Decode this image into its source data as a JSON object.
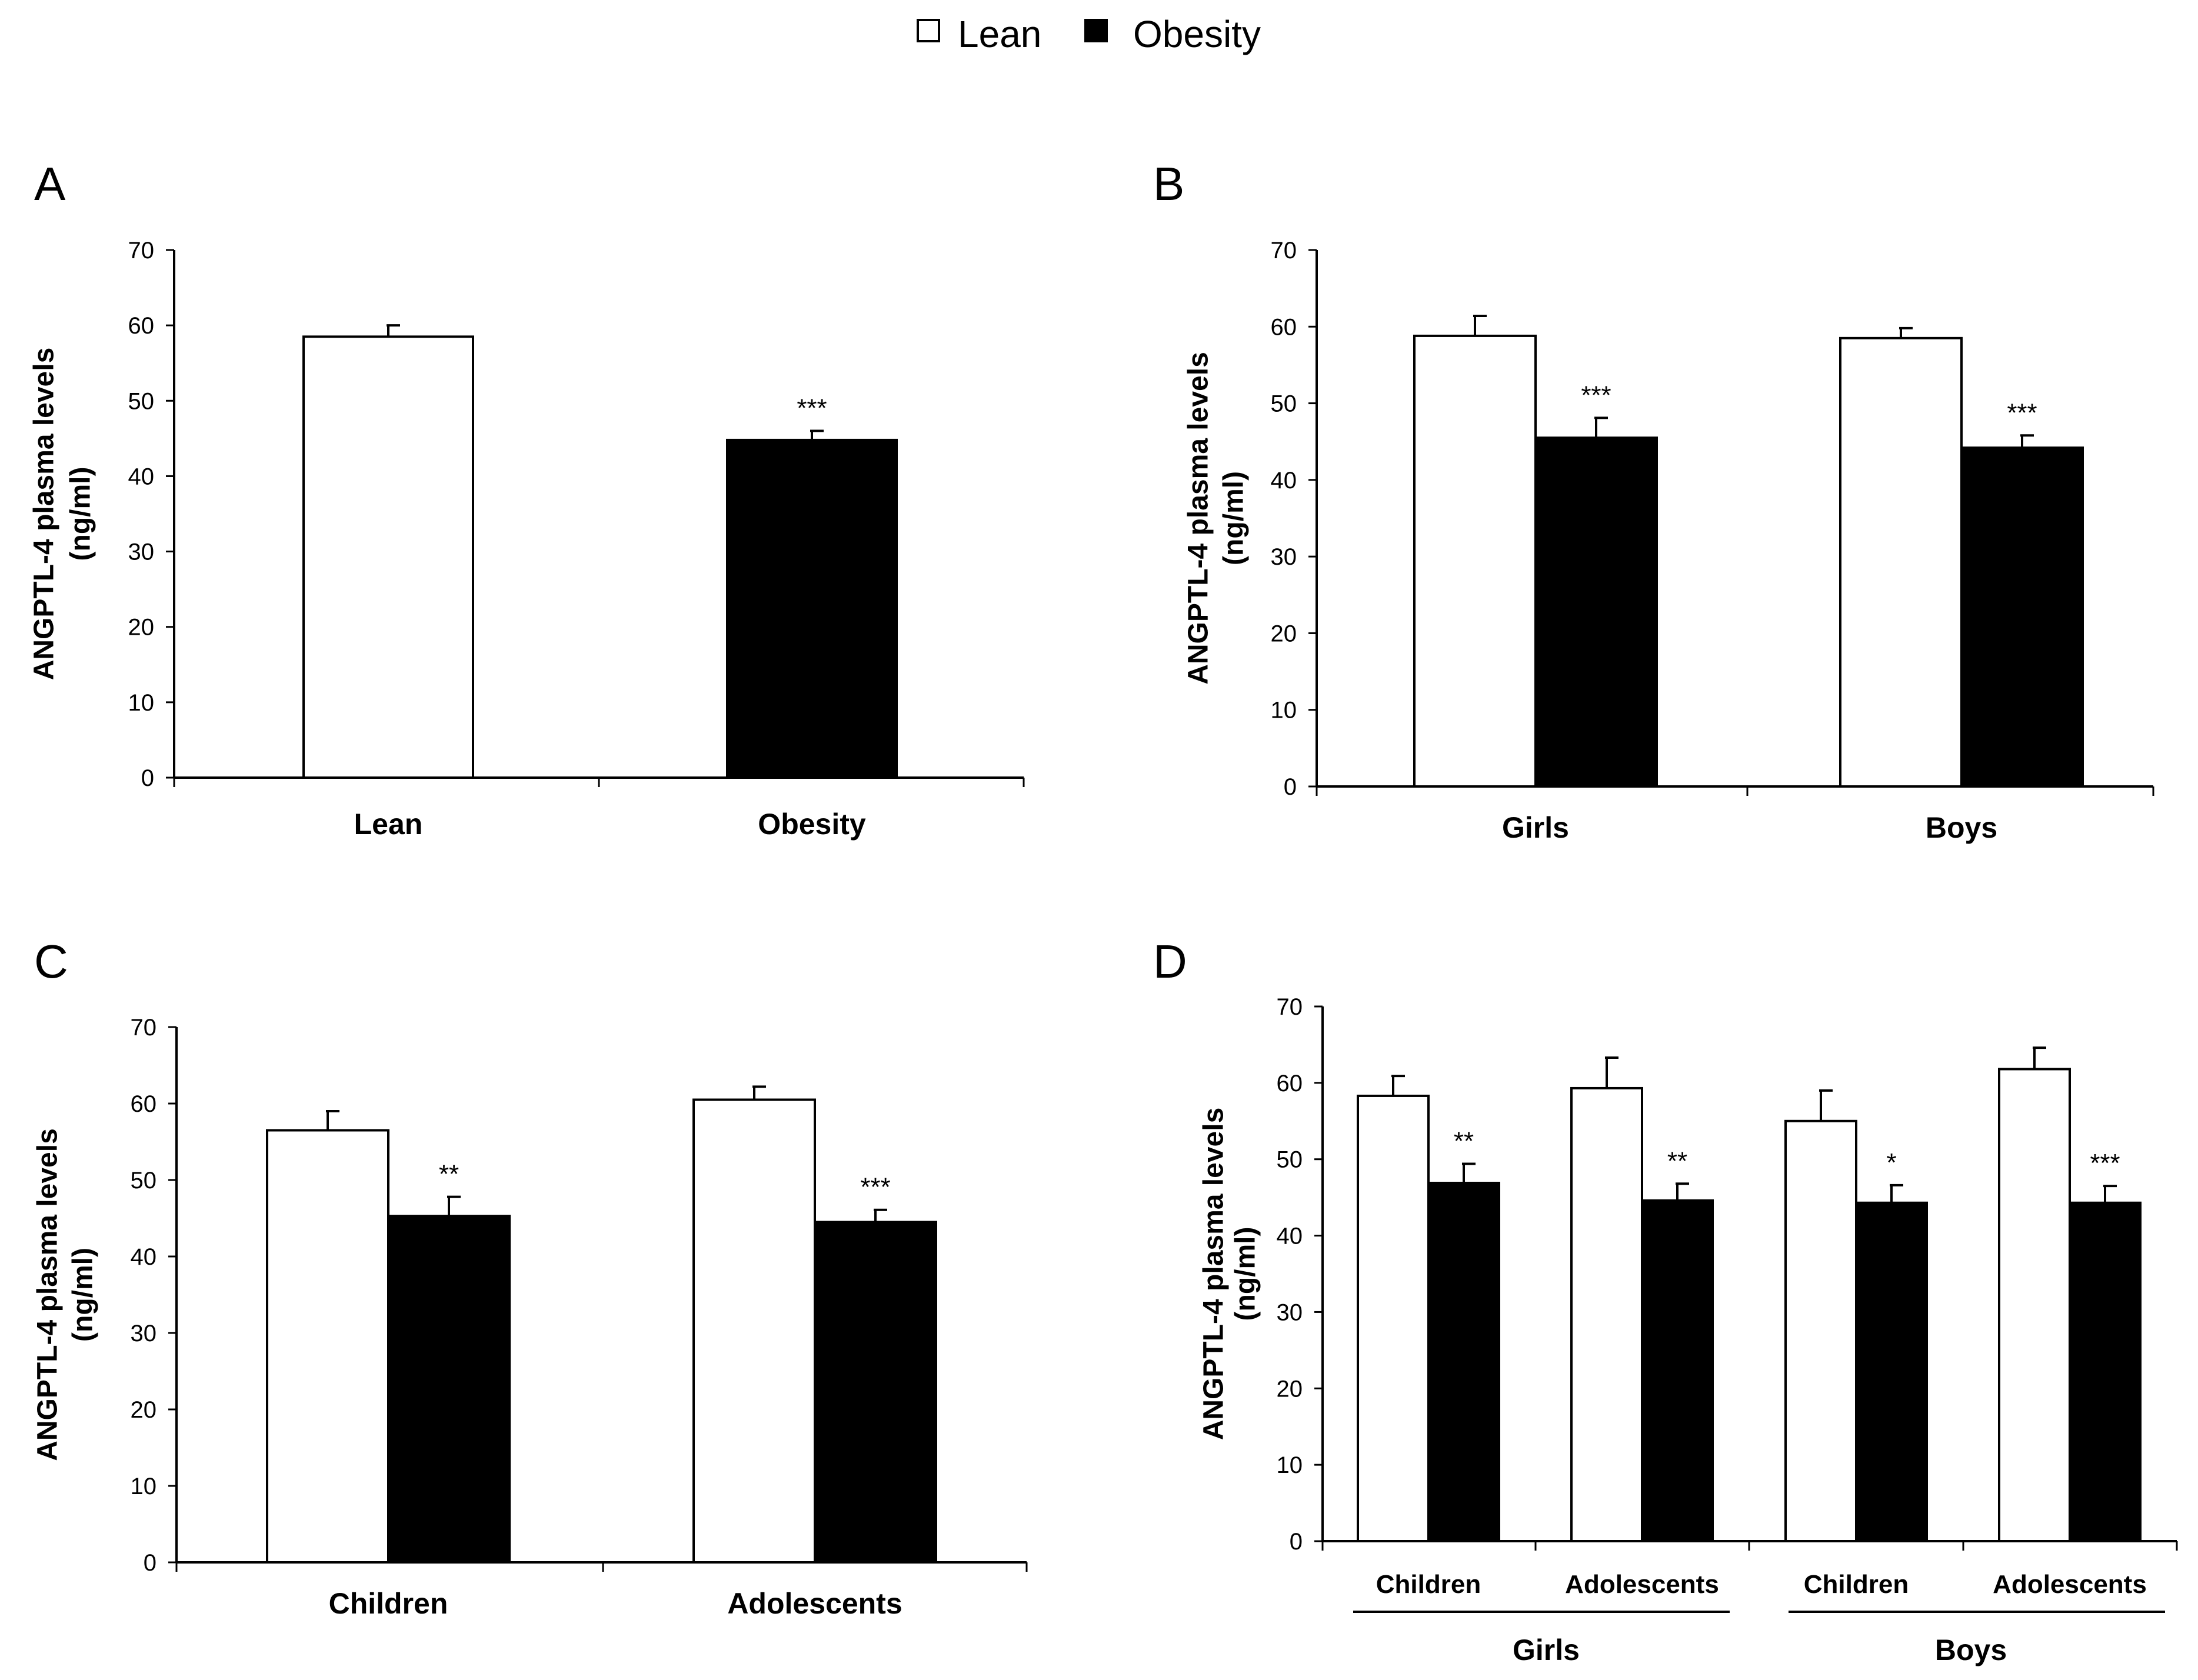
{
  "legend": [
    {
      "label": "Lean",
      "swatch": "#ffffff"
    },
    {
      "label": "Obesity",
      "swatch": "#000000"
    }
  ],
  "colors": {
    "lean": "#ffffff",
    "obesity": "#000000",
    "outline": "#000000"
  },
  "chart_data": [
    {
      "panel": "A",
      "type": "bar",
      "ylabel_line1": "ANGPTL-4 plasma levels",
      "ylabel_line2": "(ng/ml)",
      "ylim": [
        0,
        70
      ],
      "yticks": [
        0,
        10,
        20,
        30,
        40,
        50,
        60,
        70
      ],
      "categories": [
        "Lean",
        "Obesity"
      ],
      "series": [
        {
          "name": "Lean",
          "values": [
            58.5,
            null
          ],
          "errors": [
            1.5,
            null
          ],
          "sig": [
            null,
            null
          ]
        },
        {
          "name": "Obesity",
          "values": [
            null,
            44.8
          ],
          "errors": [
            null,
            1.2
          ],
          "sig": [
            null,
            "***"
          ]
        }
      ]
    },
    {
      "panel": "B",
      "type": "bar",
      "ylabel_line1": "ANGPTL-4 plasma levels",
      "ylabel_line2": "(ng/ml)",
      "ylim": [
        0,
        70
      ],
      "yticks": [
        0,
        10,
        20,
        30,
        40,
        50,
        60,
        70
      ],
      "categories": [
        "Girls",
        "Boys"
      ],
      "series": [
        {
          "name": "Lean",
          "values": [
            58.8,
            58.5
          ],
          "errors": [
            2.6,
            1.3
          ],
          "sig": [
            null,
            null
          ]
        },
        {
          "name": "Obesity",
          "values": [
            45.5,
            44.2
          ],
          "errors": [
            2.6,
            1.6
          ],
          "sig": [
            "***",
            "***"
          ]
        }
      ]
    },
    {
      "panel": "C",
      "type": "bar",
      "ylabel_line1": "ANGPTL-4 plasma levels",
      "ylabel_line2": "(ng/ml)",
      "ylim": [
        0,
        70
      ],
      "yticks": [
        0,
        10,
        20,
        30,
        40,
        50,
        60,
        70
      ],
      "categories": [
        "Children",
        "Adolescents"
      ],
      "series": [
        {
          "name": "Lean",
          "values": [
            56.5,
            60.5
          ],
          "errors": [
            2.5,
            1.7
          ],
          "sig": [
            null,
            null
          ]
        },
        {
          "name": "Obesity",
          "values": [
            45.3,
            44.5
          ],
          "errors": [
            2.5,
            1.6
          ],
          "sig": [
            "**",
            "***"
          ]
        }
      ]
    },
    {
      "panel": "D",
      "type": "bar",
      "ylabel_line1": "ANGPTL-4 plasma levels",
      "ylabel_line2": "(ng/ml)",
      "ylim": [
        0,
        70
      ],
      "yticks": [
        0,
        10,
        20,
        30,
        40,
        50,
        60,
        70
      ],
      "categories": [
        "Children",
        "Adolescents",
        "Children",
        "Adolescents"
      ],
      "groups": [
        "Girls",
        "Boys"
      ],
      "series": [
        {
          "name": "Lean",
          "values": [
            58.3,
            59.3,
            55.0,
            61.8
          ],
          "errors": [
            2.6,
            4.0,
            4.0,
            2.8
          ],
          "sig": [
            null,
            null,
            null,
            null
          ]
        },
        {
          "name": "Obesity",
          "values": [
            46.9,
            44.6,
            44.3,
            44.3
          ],
          "errors": [
            2.5,
            2.2,
            2.3,
            2.2
          ],
          "sig": [
            "**",
            "**",
            "*",
            "***"
          ]
        }
      ]
    }
  ]
}
